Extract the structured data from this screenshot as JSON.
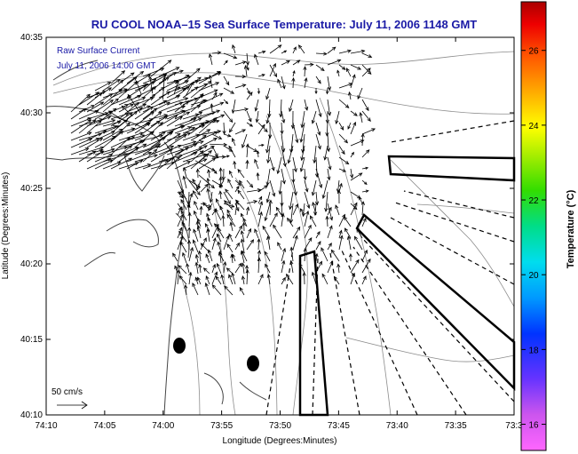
{
  "title": "RU COOL  NOAA–15  Sea Surface Temperature:  July 11, 2006 1148 GMT",
  "overlay": {
    "line1": "Raw Surface Current",
    "line2": "July 11, 2006 14:00 GMT"
  },
  "axes": {
    "xlabel": "Longitude (Degrees:Minutes)",
    "ylabel": "Latitude (Degrees:Minutes)",
    "x_ticks": [
      "74:10",
      "74:05",
      "74:00",
      "73:55",
      "73:50",
      "73:45",
      "73:40",
      "73:35",
      "73:3"
    ],
    "y_ticks": [
      "40:35",
      "40:30",
      "40:25",
      "40:20",
      "40:15",
      "40:10"
    ]
  },
  "scale_label": "50 cm/s",
  "colorbar": {
    "label": "Temperature (°C)",
    "ticks": [
      "26",
      "24",
      "22",
      "20",
      "18",
      "16"
    ],
    "range": [
      15.3,
      27.3
    ],
    "tick_values": [
      26,
      24,
      22,
      20,
      18,
      16
    ]
  },
  "colors": {
    "title": "#1a1aa6",
    "coast": "#444444",
    "isobath": "#8c8c8c",
    "vector": "#000000"
  },
  "icons": {
    "scale_arrow": "arrow-right-icon",
    "station_markers": "filled-ellipse"
  }
}
